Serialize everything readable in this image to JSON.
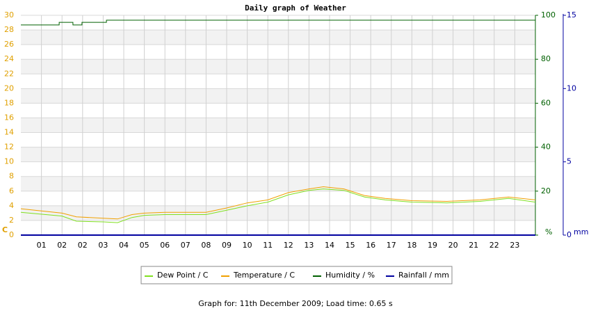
{
  "chart_data": {
    "type": "line",
    "title": "Daily graph of Weather",
    "footer": "Graph for: 11th December 2009; Load time: 0.65 s",
    "y_unit": "C",
    "y2_unit": "%",
    "y3_unit": "mm",
    "xlim": [
      0,
      25
    ],
    "xticks": [
      {
        "value": 1,
        "label": "01"
      },
      {
        "value": 2,
        "label": "02"
      },
      {
        "value": 3,
        "label": "02"
      },
      {
        "value": 4,
        "label": "03"
      },
      {
        "value": 5,
        "label": "04"
      },
      {
        "value": 6,
        "label": "05"
      },
      {
        "value": 7,
        "label": "06"
      },
      {
        "value": 8,
        "label": "07"
      },
      {
        "value": 9,
        "label": "08"
      },
      {
        "value": 10,
        "label": "09"
      },
      {
        "value": 11,
        "label": "10"
      },
      {
        "value": 12,
        "label": "11"
      },
      {
        "value": 13,
        "label": "12"
      },
      {
        "value": 14,
        "label": "13"
      },
      {
        "value": 15,
        "label": "14"
      },
      {
        "value": 16,
        "label": "15"
      },
      {
        "value": 17,
        "label": "16"
      },
      {
        "value": 18,
        "label": "17"
      },
      {
        "value": 19,
        "label": "18"
      },
      {
        "value": 20,
        "label": "19"
      },
      {
        "value": 21,
        "label": "20"
      },
      {
        "value": 22,
        "label": "21"
      },
      {
        "value": 23,
        "label": "22"
      },
      {
        "value": 24,
        "label": "23"
      }
    ],
    "ylim": [
      0,
      30
    ],
    "yticks": [
      0,
      2,
      4,
      6,
      8,
      10,
      12,
      14,
      16,
      18,
      20,
      22,
      24,
      26,
      28,
      30
    ],
    "y2lim": [
      0,
      100
    ],
    "y2ticks": [
      0,
      20,
      40,
      60,
      80,
      100
    ],
    "y3lim": [
      0,
      15
    ],
    "y3ticks": [
      0,
      5,
      10,
      15
    ],
    "grid": true,
    "y_color": "#e0a000",
    "y2_color": "#006000",
    "y3_color": "#0000a0",
    "series": [
      {
        "name": "Dew Point / C",
        "color": "#80e020",
        "x": [
          0,
          2,
          2.7,
          4,
          4.7,
          5.4,
          6,
          7,
          9,
          10,
          11,
          12,
          13,
          14,
          14.7,
          15.7,
          16.7,
          17.7,
          19,
          20.7,
          22.3,
          23.7,
          25
        ],
        "values": [
          3.1,
          2.6,
          1.9,
          1.8,
          1.7,
          2.4,
          2.7,
          2.8,
          2.8,
          3.4,
          4.0,
          4.5,
          5.5,
          6.1,
          6.3,
          6.1,
          5.2,
          4.8,
          4.5,
          4.4,
          4.6,
          5.0,
          4.5
        ]
      },
      {
        "name": "Temperature / C",
        "color": "#f0a000",
        "x": [
          0,
          2,
          2.7,
          4,
          4.7,
          5.4,
          6,
          7,
          9,
          10,
          11,
          12,
          13,
          14,
          14.7,
          15.7,
          16.7,
          17.7,
          19,
          20.7,
          22.3,
          23.7,
          25
        ],
        "values": [
          3.6,
          3.0,
          2.5,
          2.3,
          2.2,
          2.8,
          3.0,
          3.1,
          3.1,
          3.7,
          4.4,
          4.8,
          5.8,
          6.3,
          6.6,
          6.3,
          5.4,
          5.0,
          4.7,
          4.6,
          4.8,
          5.2,
          4.8
        ]
      },
      {
        "name": "Humidity / %",
        "color": "#006000",
        "axis": "y2",
        "x": [
          0,
          1.86,
          1.86,
          2.53,
          2.53,
          2.97,
          2.97,
          4.16,
          4.16,
          25
        ],
        "values": [
          95.6,
          95.6,
          96.8,
          96.8,
          95.6,
          95.6,
          96.8,
          96.8,
          97.8,
          97.8
        ]
      },
      {
        "name": "Rainfall / mm",
        "color": "#0000a0",
        "axis": "y3",
        "x": [
          0,
          25
        ],
        "values": [
          0,
          0
        ]
      }
    ]
  }
}
